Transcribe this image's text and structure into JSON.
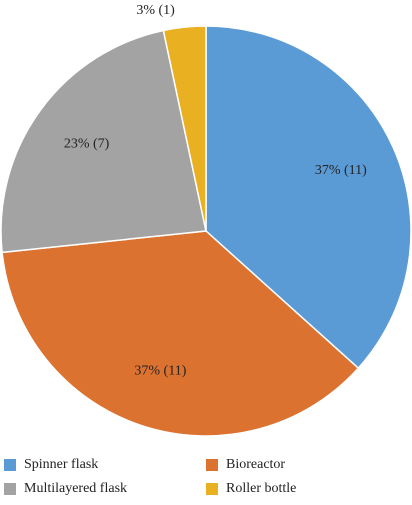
{
  "chart_data": {
    "type": "pie",
    "categories": [
      "Spinner flask",
      "Bioreactor",
      "Multilayered flask",
      "Roller bottle"
    ],
    "values": [
      11,
      11,
      7,
      1
    ],
    "value_labels": [
      "37% (11)",
      "37% (11)",
      "23% (7)",
      "3% (1)"
    ],
    "colors": [
      "#5b9bd5",
      "#dc7230",
      "#a3a3a3",
      "#e9b021"
    ],
    "legend": "bottom"
  }
}
